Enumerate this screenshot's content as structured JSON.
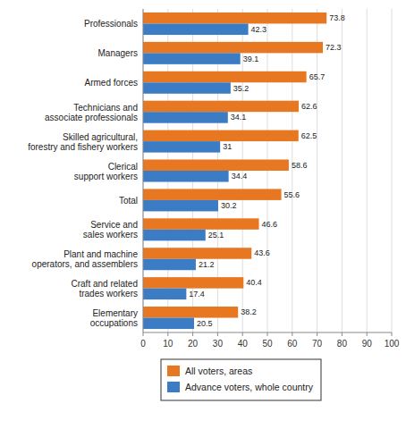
{
  "chart_data": {
    "type": "bar",
    "orientation": "horizontal",
    "categories": [
      "Elementary\noccupations",
      "Craft and related\ntrades workers",
      "Plant and machine\noperators, and assemblers",
      "Service and\nsales workers",
      "Total",
      "Clerical\nsupport workers",
      "Skilled agricultural,\nforestry and fishery workers",
      "Technicians and\nassociate professionals",
      "Armed forces",
      "Managers",
      "Professionals"
    ],
    "series": [
      {
        "name": "All voters, areas",
        "color": "#E87722",
        "values": [
          38.2,
          40.4,
          43.6,
          46.6,
          55.6,
          58.6,
          62.5,
          62.6,
          65.7,
          72.3,
          73.8
        ]
      },
      {
        "name": "Advance voters, whole country",
        "color": "#3B7CC4",
        "values": [
          20.5,
          17.4,
          21.2,
          25.1,
          30.2,
          34.4,
          31.0,
          34.1,
          35.2,
          39.1,
          42.3
        ]
      }
    ],
    "xlim": [
      0,
      100
    ],
    "xticks": [
      0,
      10,
      20,
      30,
      40,
      50,
      60,
      70,
      80,
      90,
      100
    ],
    "grid": true,
    "data_labels": true,
    "legend": "bottom"
  }
}
